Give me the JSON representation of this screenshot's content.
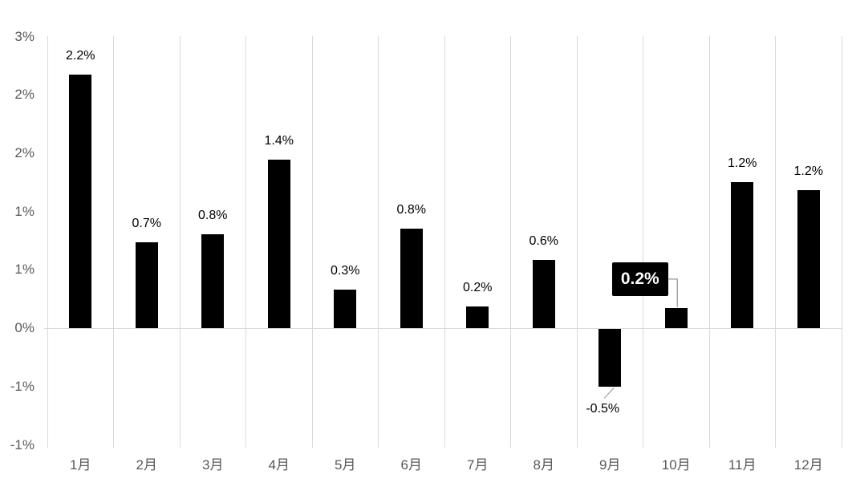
{
  "chart_data": {
    "type": "bar",
    "title": "",
    "xlabel": "",
    "ylabel": "",
    "categories": [
      "1月",
      "2月",
      "3月",
      "4月",
      "5月",
      "6月",
      "7月",
      "8月",
      "9月",
      "10月",
      "11月",
      "12月"
    ],
    "values": [
      2.2,
      0.7,
      0.8,
      1.4,
      0.3,
      0.8,
      0.2,
      0.6,
      -0.5,
      0.2,
      1.2,
      1.2
    ],
    "labels": [
      "2.2%",
      "0.7%",
      "0.8%",
      "1.4%",
      "0.3%",
      "0.8%",
      "0.2%",
      "0.6%",
      "-0.5%",
      "0.2%",
      "1.2%",
      "1.2%"
    ],
    "render_values": [
      2.17,
      0.73,
      0.8,
      1.44,
      0.33,
      0.85,
      0.18,
      0.58,
      -0.5,
      0.17,
      1.25,
      1.18
    ],
    "label_placement": [
      "above",
      "above",
      "above",
      "above",
      "above",
      "above",
      "above",
      "above",
      "below-leader",
      "callout",
      "above",
      "above"
    ],
    "y_axis": {
      "min": -1.0,
      "max": 2.5,
      "step": 0.5,
      "tick_labels_top_to_bottom": [
        "3%",
        "2%",
        "2%",
        "1%",
        "1%",
        "0%",
        "-1%",
        "-1%"
      ]
    },
    "grid": {
      "vertical": true,
      "horizontal": false,
      "zero_line": true
    },
    "legend": null,
    "callout": {
      "category": "10月",
      "label": "0.2%"
    },
    "colors": {
      "bar": "#000000",
      "gridline": "#d9d9d9",
      "zero_line": "#d9d9d9",
      "axis_text": "#595959",
      "data_label": "#000000",
      "leader_line": "#a6a6a6",
      "callout_bg": "#000000",
      "callout_text": "#ffffff"
    }
  }
}
